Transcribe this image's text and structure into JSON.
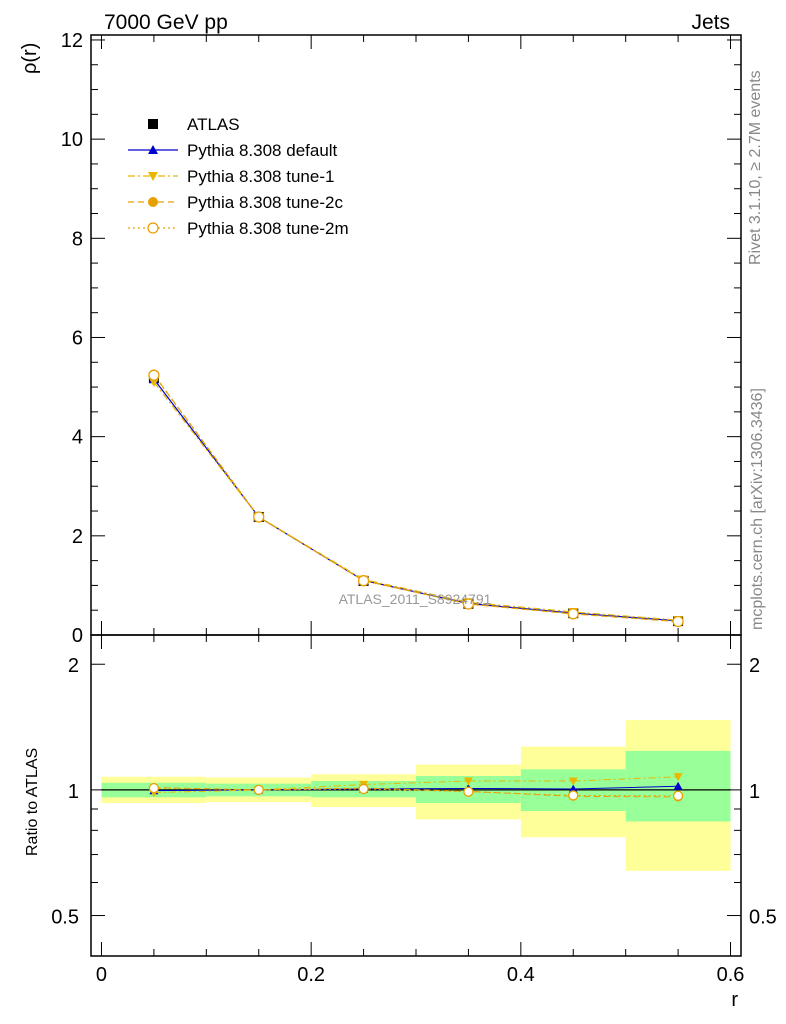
{
  "header": {
    "left": "7000 GeV pp",
    "right": "Jets"
  },
  "side_labels": {
    "rivet": "Rivet 3.1.10, ≥ 2.7M events",
    "mcplots": "mcplots.cern.ch [arXiv:1306.3436]"
  },
  "watermark": "ATLAS_2011_S8924791",
  "x_axis": {
    "label": "r",
    "ticks": [
      "0",
      "0.2",
      "0.4",
      "0.6"
    ]
  },
  "main_axis": {
    "label": "ρ(r)",
    "ticks": [
      "0",
      "2",
      "4",
      "6",
      "8",
      "10",
      "12"
    ]
  },
  "ratio_axis": {
    "label": "Ratio to ATLAS",
    "ticks": [
      "0.5",
      "1",
      "2"
    ]
  },
  "chart_data": {
    "type": "line",
    "x": [
      0.05,
      0.15,
      0.25,
      0.35,
      0.45,
      0.55
    ],
    "x_edges": [
      0.0,
      0.1,
      0.2,
      0.3,
      0.4,
      0.5,
      0.6
    ],
    "xlim": [
      -0.01,
      0.61
    ],
    "ylim": [
      0,
      12.1
    ],
    "ratio_ylim": [
      0.4,
      2.35
    ],
    "ratio_scale": "log",
    "legend_position": "top-left",
    "series": [
      {
        "name": "ATLAS",
        "values": [
          5.18,
          2.38,
          1.09,
          0.63,
          0.44,
          0.28
        ],
        "color": "#000000",
        "marker": "square",
        "line": "none"
      },
      {
        "name": "Pythia 8.308 default",
        "values": [
          5.16,
          2.38,
          1.1,
          0.635,
          0.442,
          0.286
        ],
        "color": "#0000cc",
        "marker": "triangle-up",
        "line": "solid",
        "ratio": [
          0.996,
          1.0,
          1.005,
          1.008,
          1.005,
          1.02
        ]
      },
      {
        "name": "Pythia 8.308 tune-1",
        "values": [
          5.1,
          2.38,
          1.12,
          0.66,
          0.465,
          0.3
        ],
        "color": "#e8b800",
        "marker": "triangle-down",
        "line": "dashdot",
        "ratio": [
          0.985,
          1.0,
          1.03,
          1.05,
          1.05,
          1.075
        ]
      },
      {
        "name": "Pythia 8.308 tune-2c",
        "values": [
          5.25,
          2.38,
          1.1,
          0.625,
          0.425,
          0.27
        ],
        "color": "#e8a000",
        "marker": "circle",
        "line": "dashed",
        "ratio": [
          1.013,
          1.0,
          1.01,
          0.992,
          0.965,
          0.962
        ]
      },
      {
        "name": "Pythia 8.308 tune-2m",
        "values": [
          5.24,
          2.38,
          1.095,
          0.625,
          0.427,
          0.272
        ],
        "color": "#e8a000",
        "marker": "circle-open",
        "line": "dotted",
        "ratio": [
          1.01,
          1.0,
          1.005,
          0.99,
          0.97,
          0.968
        ]
      }
    ],
    "uncertainty_bands": {
      "inner_green": [
        [
          0.96,
          1.04
        ],
        [
          0.965,
          1.035
        ],
        [
          0.96,
          1.05
        ],
        [
          0.93,
          1.08
        ],
        [
          0.89,
          1.12
        ],
        [
          0.84,
          1.24
        ]
      ],
      "outer_yellow": [
        [
          0.93,
          1.075
        ],
        [
          0.935,
          1.07
        ],
        [
          0.91,
          1.09
        ],
        [
          0.85,
          1.15
        ],
        [
          0.77,
          1.27
        ],
        [
          0.64,
          1.47
        ]
      ]
    }
  }
}
